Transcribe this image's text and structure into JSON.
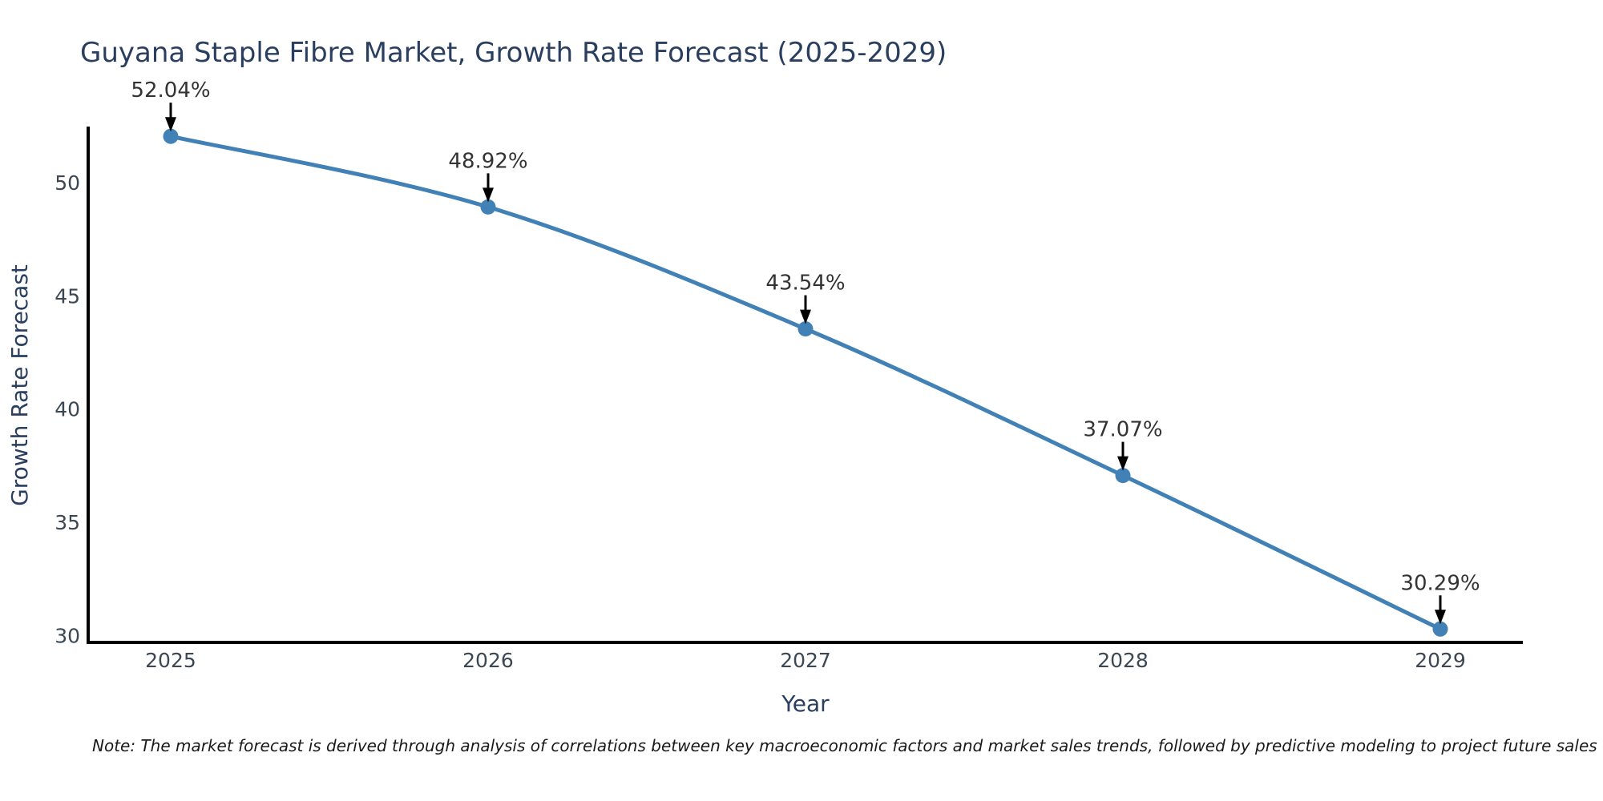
{
  "page": {
    "background": "#ffffff"
  },
  "chart_data": {
    "type": "line",
    "title": "Guyana Staple Fibre Market, Growth Rate Forecast (2025-2029)",
    "xlabel": "Year",
    "ylabel": "Growth Rate Forecast",
    "x": [
      2025,
      2026,
      2027,
      2028,
      2029
    ],
    "x_tick_labels": [
      "2025",
      "2026",
      "2027",
      "2028",
      "2029"
    ],
    "yticks": [
      30,
      35,
      40,
      45,
      50
    ],
    "xlim": [
      2024.74,
      2029.26
    ],
    "ylim": [
      29.7,
      52.4
    ],
    "grid": false,
    "legend": false,
    "series": [
      {
        "name": "Growth Rate Forecast",
        "values": [
          52.04,
          48.92,
          43.54,
          37.07,
          30.29
        ],
        "point_labels": [
          "52.04%",
          "48.92%",
          "43.54%",
          "37.07%",
          "30.29%"
        ],
        "color": "#4181b5",
        "line_shape": "spline",
        "marker": "circle"
      }
    ],
    "note": "Note: The market forecast is derived through analysis of correlations between key macroeconomic factors and market sales trends, followed by predictive modeling to project future sales",
    "colors": {
      "line": "#4181b5",
      "marker": "#4181b5",
      "axis_line": "#000000",
      "arrow": "#000000",
      "title_text": "#2a3f5f",
      "axis_title_text": "#2a3f5f",
      "tick_text": "#3b4752",
      "annotation_text": "#333333",
      "note_text": "#1a1a1a",
      "background": "#ffffff"
    }
  }
}
